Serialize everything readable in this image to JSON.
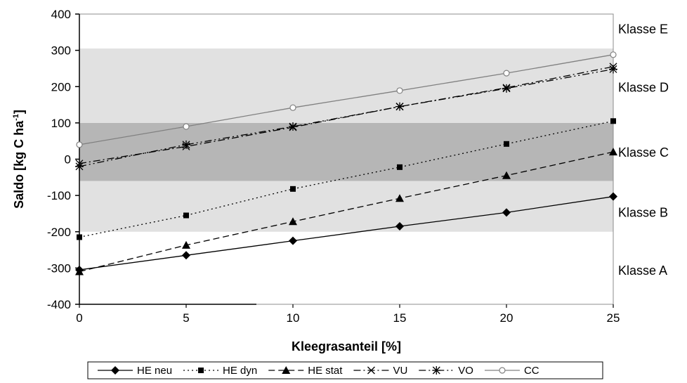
{
  "chart_data": {
    "type": "line",
    "title": "",
    "xlabel": "Kleegrasanteil [%]",
    "ylabel_main": "Saldo [kg C ha",
    "ylabel_sup": "-1",
    "ylabel_end": "]",
    "x": [
      0,
      5,
      10,
      15,
      20,
      25
    ],
    "xlim": [
      0,
      25
    ],
    "ylim": [
      -400,
      400
    ],
    "xticks": [
      "0",
      "5",
      "10",
      "15",
      "20",
      "25"
    ],
    "yticks": [
      "-400",
      "-300",
      "-200",
      "-100",
      "0",
      "100",
      "200",
      "300",
      "400"
    ],
    "grid": false,
    "legend_position": "bottom",
    "bands": [
      {
        "from": -200,
        "to": -60,
        "shade": "light"
      },
      {
        "from": -60,
        "to": 100,
        "shade": "dark"
      },
      {
        "from": 100,
        "to": 305,
        "shade": "light"
      }
    ],
    "class_labels": [
      {
        "text": "Klasse E",
        "y": 360
      },
      {
        "text": "Klasse D",
        "y": 200
      },
      {
        "text": "Klasse C",
        "y": 20
      },
      {
        "text": "Klasse B",
        "y": -145
      },
      {
        "text": "Klasse A",
        "y": -305
      }
    ],
    "series": [
      {
        "name": "HE neu",
        "marker": "diamond",
        "dash": "solid",
        "values": [
          -305,
          -265,
          -225,
          -185,
          -147,
          -103
        ]
      },
      {
        "name": "HE dyn",
        "marker": "square",
        "dash": "dotted",
        "values": [
          -215,
          -155,
          -82,
          -22,
          42,
          105
        ]
      },
      {
        "name": "HE stat",
        "marker": "triangle",
        "dash": "dashed",
        "values": [
          -310,
          -237,
          -172,
          -108,
          -45,
          20
        ]
      },
      {
        "name": "VU",
        "marker": "x",
        "dash": "dashdot",
        "values": [
          -12,
          35,
          88,
          145,
          197,
          255
        ]
      },
      {
        "name": "VO",
        "marker": "star",
        "dash": "dashdotdot",
        "values": [
          -20,
          40,
          90,
          145,
          195,
          248
        ]
      },
      {
        "name": "CC",
        "marker": "circle",
        "dash": "solid-gray",
        "values": [
          40,
          90,
          142,
          189,
          237,
          288
        ]
      }
    ],
    "colors": {
      "light_band": "#e1e1e1",
      "dark_band": "#b6b6b6",
      "line": "#000000",
      "cc_line": "#808080"
    }
  }
}
